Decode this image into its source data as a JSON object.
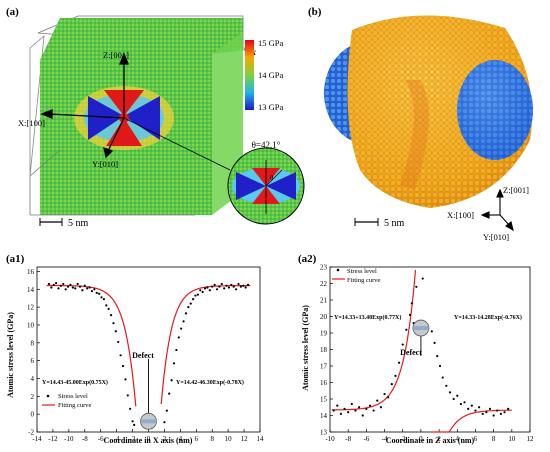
{
  "panels": {
    "a": "(a)",
    "b": "(b)",
    "a1": "(a1)",
    "a2": "(a2)"
  },
  "panel_a": {
    "sigma_symbol": "σ",
    "sigma_sub": "x",
    "colorbar_labels": [
      "15 GPa",
      "14 GPa",
      "13 GPa"
    ],
    "colorbar_values": [
      15,
      14,
      13
    ],
    "axis_z": "Z:[001]",
    "axis_x": "X:[100]",
    "axis_y": "Y:[010]",
    "theta": "θ=42.1°",
    "theta_glyph": "θ",
    "scale": "5 nm"
  },
  "panel_b": {
    "axis_z": "Z:[001]",
    "axis_x": "X:[100]",
    "axis_y": "Y:[010]",
    "scale": "5 nm"
  },
  "chart_data": [
    {
      "type": "scatter",
      "panel": "(a1)",
      "xlabel": "Coordinate in X axis (nm)",
      "ylabel": "Atomic stress level (GPa)",
      "xlim": [
        -14,
        14
      ],
      "ylim": [
        -2,
        16.5
      ],
      "xticks": [
        -14,
        -12,
        -10,
        -8,
        -6,
        -4,
        -2,
        0,
        2,
        4,
        6,
        8,
        10,
        12,
        14
      ],
      "yticks": [
        -2,
        0,
        2,
        4,
        6,
        8,
        10,
        12,
        14,
        16
      ],
      "legend": [
        "Stress level",
        "Fitting curve"
      ],
      "legend_position": "bottom-left",
      "annotations": {
        "defect": "Defect",
        "fit_left": "Y=14.43-45.00Exp(0.75X)",
        "fit_right": "Y=14.42-46.30Exp(-0.78X)"
      },
      "series": [
        {
          "name": "Stress level",
          "x": [
            -12.5,
            -12.2,
            -11.9,
            -11.6,
            -11.3,
            -11.0,
            -10.7,
            -10.4,
            -10.1,
            -9.8,
            -9.5,
            -9.2,
            -8.9,
            -8.6,
            -8.3,
            -8.0,
            -7.7,
            -7.4,
            -7.1,
            -6.8,
            -6.5,
            -6.2,
            -5.9,
            -5.6,
            -5.3,
            -5.0,
            -4.7,
            -4.4,
            -4.1,
            -3.8,
            -3.5,
            -3.2,
            -2.9,
            -2.6,
            -2.3,
            -2.0,
            -1.8,
            2.0,
            2.3,
            2.6,
            2.9,
            3.2,
            3.5,
            3.8,
            4.1,
            4.4,
            4.7,
            5.0,
            5.3,
            5.6,
            5.9,
            6.2,
            6.5,
            6.8,
            7.1,
            7.4,
            7.7,
            8.0,
            8.3,
            8.6,
            8.9,
            9.2,
            9.5,
            9.8,
            10.1,
            10.4,
            10.7,
            11.0,
            11.3,
            11.6,
            11.9,
            12.2,
            12.5
          ],
          "y": [
            14.6,
            14.2,
            14.5,
            14.7,
            14.1,
            14.4,
            14.6,
            14.0,
            14.3,
            14.5,
            14.2,
            14.1,
            14.6,
            14.3,
            13.9,
            14.4,
            14.1,
            14.2,
            13.8,
            14.0,
            13.6,
            13.5,
            13.1,
            12.9,
            12.2,
            11.8,
            11.1,
            10.2,
            9.3,
            8.1,
            6.6,
            5.4,
            3.9,
            2.1,
            0.6,
            -0.8,
            -1.2,
            -0.9,
            0.4,
            2.3,
            3.8,
            5.7,
            7.2,
            8.6,
            9.6,
            10.4,
            11.3,
            12.0,
            12.4,
            12.9,
            13.3,
            13.4,
            13.9,
            13.7,
            14.1,
            14.2,
            13.9,
            14.3,
            14.5,
            14.0,
            14.3,
            14.6,
            14.1,
            14.4,
            14.2,
            14.5,
            14.3,
            14.0,
            14.6,
            14.3,
            14.4,
            14.2,
            14.5
          ]
        },
        {
          "name": "Fitting curve",
          "left": {
            "a": 14.43,
            "b": 45.0,
            "c": 0.75
          },
          "right": {
            "a": 14.42,
            "b": 46.3,
            "c": -0.78
          }
        }
      ]
    },
    {
      "type": "scatter",
      "panel": "(a2)",
      "xlabel": "Coordinate in Z axis (nm)",
      "ylabel": "Atomic stress level (GPa)",
      "xlim": [
        -10,
        12
      ],
      "ylim": [
        13,
        23
      ],
      "xticks": [
        -10,
        -8,
        -6,
        -4,
        -2,
        0,
        2,
        4,
        6,
        8,
        10,
        12
      ],
      "yticks": [
        13,
        14,
        15,
        16,
        17,
        18,
        19,
        20,
        21,
        22,
        23
      ],
      "legend": [
        "Stress level",
        "Fitting curve"
      ],
      "legend_position": "top-left",
      "annotations": {
        "defect": "Defect",
        "fit_left": "Y=14.33+13.48Exp(0.77X)",
        "fit_right": "Y=14.33-14.28Exp(-0.76X)"
      },
      "series": [
        {
          "name": "Stress level",
          "x": [
            -9.6,
            -9.2,
            -8.8,
            -8.4,
            -8.0,
            -7.6,
            -7.2,
            -6.8,
            -6.4,
            -6.0,
            -5.6,
            -5.2,
            -4.8,
            -4.4,
            -4.0,
            -3.6,
            -3.2,
            -2.8,
            -2.4,
            -2.0,
            -1.6,
            -1.2,
            -0.8,
            -0.5,
            1.2,
            1.5,
            1.8,
            2.1,
            2.4,
            2.8,
            3.2,
            3.6,
            4.0,
            4.4,
            4.8,
            5.2,
            5.6,
            6.0,
            6.4,
            6.8,
            7.2,
            7.6,
            8.0,
            8.4,
            8.8,
            9.2,
            9.6,
            -1.0,
            0.2,
            -0.3
          ],
          "y": [
            14.3,
            14.6,
            14.1,
            14.4,
            14.2,
            14.7,
            14.3,
            14.5,
            14.0,
            14.4,
            14.6,
            14.3,
            14.9,
            14.5,
            15.3,
            15.1,
            15.9,
            16.4,
            17.2,
            18.3,
            19.2,
            20.1,
            19.6,
            21.8,
            19.1,
            18.4,
            17.6,
            17.0,
            16.3,
            15.8,
            15.4,
            15.0,
            15.2,
            14.7,
            14.8,
            14.4,
            14.6,
            14.3,
            14.5,
            14.1,
            14.2,
            14.4,
            14.0,
            14.3,
            14.1,
            14.2,
            14.4,
            20.8,
            22.3,
            19.7
          ]
        },
        {
          "name": "Fitting curve",
          "left": {
            "a": 14.33,
            "b": 13.48,
            "c": 0.77
          },
          "right": {
            "a": 14.33,
            "b": -14.28,
            "c": -0.76
          }
        }
      ]
    }
  ]
}
